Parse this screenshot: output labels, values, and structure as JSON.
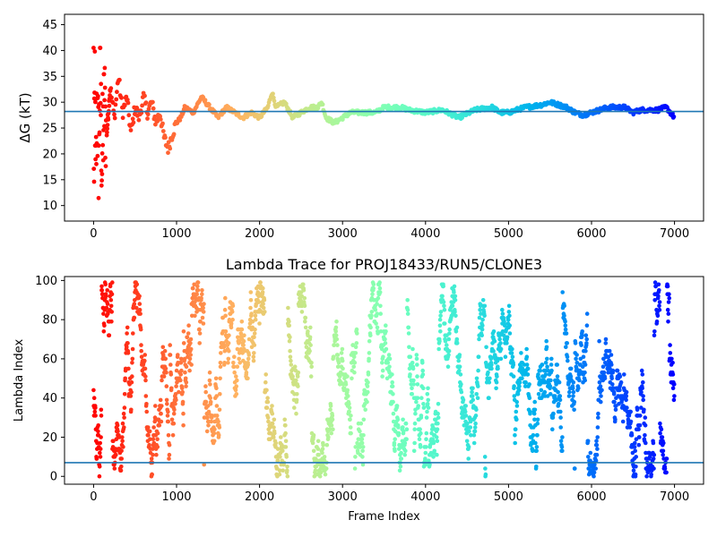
{
  "chart_data": [
    {
      "type": "scatter",
      "title": "",
      "xlabel": "",
      "ylabel": "ΔG (kT)",
      "xlim": [
        -350,
        7350
      ],
      "ylim": [
        7,
        47
      ],
      "xticks": [
        0,
        1000,
        2000,
        3000,
        4000,
        5000,
        6000,
        7000
      ],
      "yticks": [
        10,
        15,
        20,
        25,
        30,
        35,
        40,
        45
      ],
      "reference_line": 28.2,
      "colormap": "rainbow (red at frame 0 to violet at frame 7000)",
      "trace_keypoints": [
        [
          0,
          40
        ],
        [
          5,
          9
        ],
        [
          15,
          36
        ],
        [
          25,
          12
        ],
        [
          40,
          30
        ],
        [
          60,
          20
        ],
        [
          80,
          35
        ],
        [
          100,
          18
        ],
        [
          130,
          30
        ],
        [
          160,
          24
        ],
        [
          200,
          33
        ],
        [
          250,
          27
        ],
        [
          300,
          35
        ],
        [
          350,
          28
        ],
        [
          400,
          31
        ],
        [
          450,
          24
        ],
        [
          500,
          29
        ],
        [
          550,
          27
        ],
        [
          600,
          31
        ],
        [
          650,
          28
        ],
        [
          700,
          30
        ],
        [
          750,
          26
        ],
        [
          800,
          28
        ],
        [
          850,
          23
        ],
        [
          900,
          21
        ],
        [
          950,
          24
        ],
        [
          1000,
          26
        ],
        [
          1050,
          27
        ],
        [
          1100,
          29
        ],
        [
          1200,
          28
        ],
        [
          1300,
          31
        ],
        [
          1400,
          29
        ],
        [
          1500,
          27
        ],
        [
          1600,
          29
        ],
        [
          1700,
          28
        ],
        [
          1800,
          27
        ],
        [
          1900,
          28
        ],
        [
          2000,
          27
        ],
        [
          2100,
          29
        ],
        [
          2150,
          32
        ],
        [
          2200,
          29
        ],
        [
          2300,
          30
        ],
        [
          2400,
          27
        ],
        [
          2500,
          28
        ],
        [
          2600,
          29
        ],
        [
          2700,
          29
        ],
        [
          2750,
          30
        ],
        [
          2800,
          27
        ],
        [
          2900,
          26
        ],
        [
          3000,
          27
        ],
        [
          3100,
          28
        ],
        [
          3200,
          28
        ],
        [
          3400,
          28
        ],
        [
          3500,
          29
        ],
        [
          3600,
          29
        ],
        [
          3700,
          29
        ],
        [
          3800,
          28.5
        ],
        [
          4000,
          28
        ],
        [
          4200,
          28.5
        ],
        [
          4400,
          27
        ],
        [
          4600,
          28.5
        ],
        [
          4800,
          29
        ],
        [
          4900,
          28
        ],
        [
          5000,
          28
        ],
        [
          5200,
          29
        ],
        [
          5400,
          29.5
        ],
        [
          5500,
          30
        ],
        [
          5700,
          29
        ],
        [
          5800,
          28
        ],
        [
          5900,
          27.5
        ],
        [
          6000,
          28
        ],
        [
          6200,
          29
        ],
        [
          6400,
          29
        ],
        [
          6500,
          28
        ],
        [
          6600,
          28.5
        ],
        [
          6800,
          28.5
        ],
        [
          6900,
          29
        ],
        [
          7000,
          27
        ]
      ]
    },
    {
      "type": "scatter",
      "title": "Lambda Trace for PROJ18433/RUN5/CLONE3",
      "xlabel": "Frame Index",
      "ylabel": "Lambda Index",
      "xlim": [
        -350,
        7350
      ],
      "ylim": [
        -4,
        102
      ],
      "xticks": [
        0,
        1000,
        2000,
        3000,
        4000,
        5000,
        6000,
        7000
      ],
      "yticks": [
        0,
        20,
        40,
        60,
        80,
        100
      ],
      "reference_line": 7,
      "colormap": "rainbow (red at frame 0 to violet at frame 7000)",
      "frames": 7000,
      "lambda_range": [
        0,
        99
      ],
      "description_values": "dense scatter of lambda index (0-99) per frame, markers colored by frame"
    }
  ]
}
